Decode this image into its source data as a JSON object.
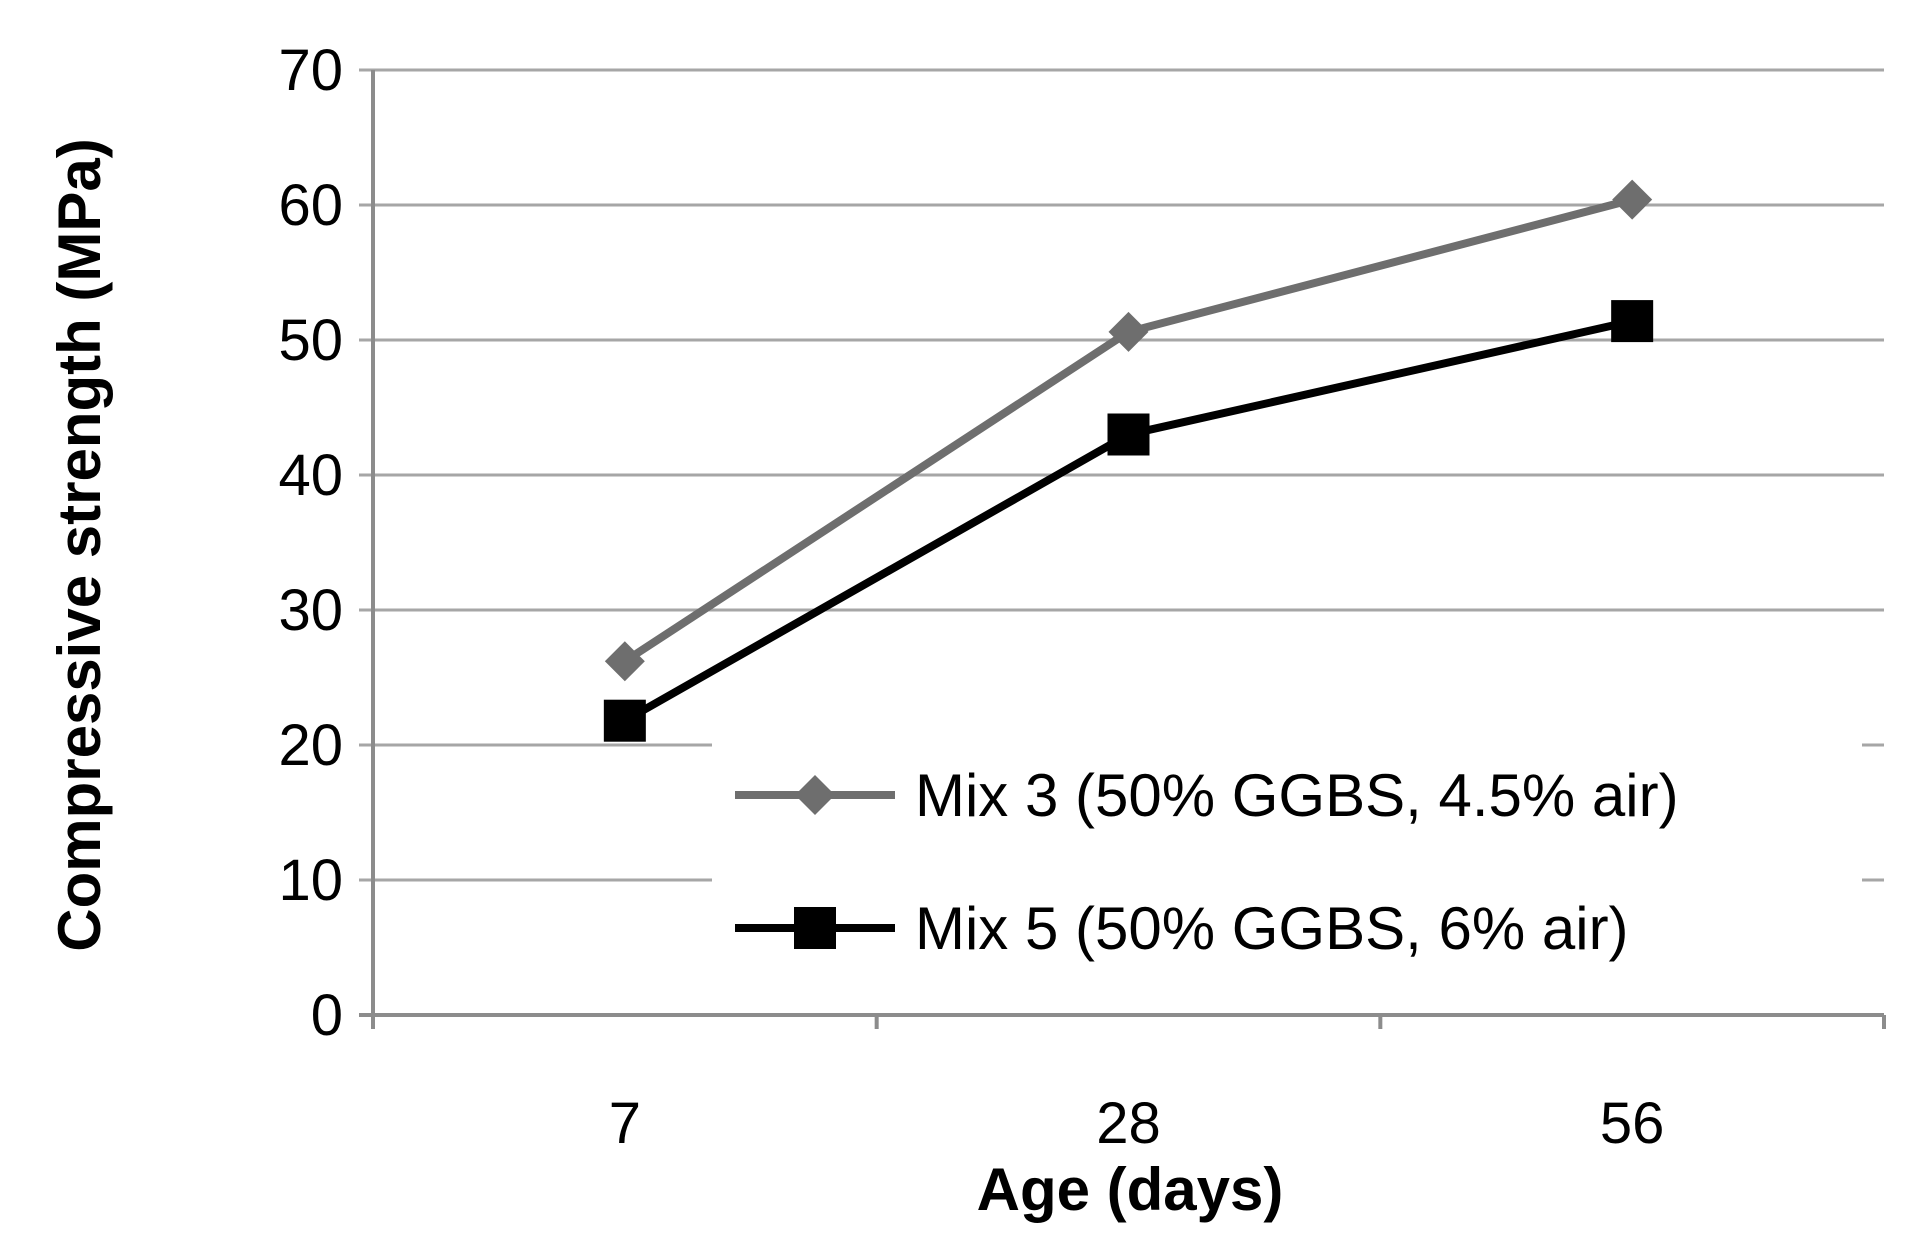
{
  "chart_data": {
    "type": "line",
    "title": "",
    "xlabel": "Age (days)",
    "ylabel": "Compressive strength (MPa)",
    "categories": [
      "7",
      "28",
      "56"
    ],
    "ylim": [
      0,
      70
    ],
    "yticks": [
      "0",
      "10",
      "20",
      "30",
      "40",
      "50",
      "60",
      "70"
    ],
    "grid": true,
    "legend_position": "bottom-right",
    "series": [
      {
        "name": "Mix 3 (50% GGBS, 4.5% air)",
        "values": [
          26.2,
          50.6,
          60.4
        ],
        "color": "#6e6e6e",
        "marker": "diamond"
      },
      {
        "name": "Mix 5 (50% GGBS, 6% air)",
        "values": [
          21.8,
          43.0,
          51.4
        ],
        "color": "#000000",
        "marker": "square"
      }
    ]
  }
}
